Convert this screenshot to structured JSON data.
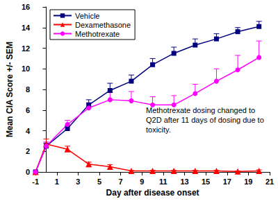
{
  "chart_data": {
    "type": "line",
    "x_label": "Day after disease onset",
    "y_label": "Mean CIA Score +/- SEM",
    "x": [
      -1,
      0,
      2,
      4,
      6,
      8,
      10,
      12,
      14,
      16,
      18,
      20
    ],
    "series": [
      {
        "name": "Vehicle",
        "color": "#000080",
        "marker": "square",
        "values": [
          0,
          2.5,
          4.2,
          6.5,
          7.9,
          8.8,
          10.4,
          11.5,
          12.3,
          12.9,
          13.6,
          14.1
        ],
        "errors": [
          0,
          0.3,
          0.3,
          0.5,
          0.7,
          0.6,
          0.6,
          0.6,
          0.6,
          0.5,
          0.4,
          0.5
        ]
      },
      {
        "name": "Dexamethasone",
        "color": "#ff0000",
        "marker": "triangle",
        "values": [
          0,
          2.7,
          2.2,
          0.75,
          0.5,
          0.1,
          0.1,
          0.1,
          0.1,
          0.1,
          0.05,
          0.1
        ],
        "errors": [
          0,
          0.5,
          0.3,
          0.2,
          0.2,
          0.05,
          0.05,
          0.05,
          0.05,
          0.05,
          0.05,
          0.1
        ]
      },
      {
        "name": "Methotrexate",
        "color": "#ff00ff",
        "marker": "circle",
        "values": [
          0,
          2.5,
          4.6,
          6.2,
          7.0,
          6.9,
          6.5,
          6.5,
          7.6,
          8.8,
          9.9,
          11.1
        ],
        "errors": [
          0,
          0.4,
          0.4,
          0.5,
          0.7,
          0.9,
          0.8,
          0.9,
          0.9,
          1.2,
          1.4,
          1.6
        ]
      }
    ],
    "annotation": "Methotrexate dosing changed to Q2D after 11 days of dosing due to toxicity.",
    "xlim": [
      -1,
      21
    ],
    "xticks": [
      -1,
      1,
      3,
      5,
      7,
      9,
      11,
      13,
      15,
      17,
      19,
      21
    ],
    "ylim": [
      0,
      16
    ],
    "yticks": [
      0,
      2,
      4,
      6,
      8,
      10,
      12,
      14,
      16
    ],
    "grid": false,
    "legend": "upper left"
  }
}
